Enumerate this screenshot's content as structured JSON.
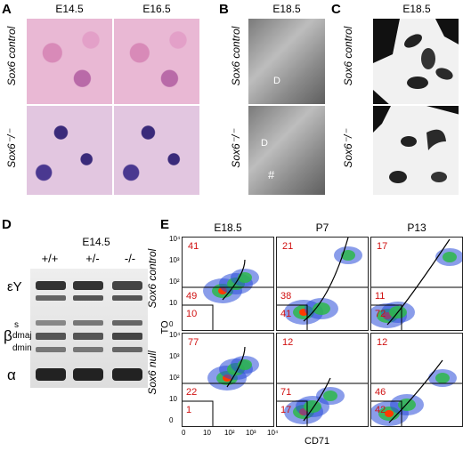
{
  "panel_labels": [
    "A",
    "B",
    "C",
    "D",
    "E"
  ],
  "panelA": {
    "headers": [
      "E14.5",
      "E16.5"
    ],
    "rows": [
      "Sox6 control",
      "Sox6⁻/⁻"
    ]
  },
  "panelB": {
    "header": "E18.5",
    "rows": [
      "Sox6 control",
      "Sox6⁻/⁻"
    ],
    "marks": [
      "D",
      "D",
      "#"
    ]
  },
  "panelC": {
    "header": "E18.5",
    "rows": [
      "Sox6 control",
      "Sox6⁻/⁻"
    ]
  },
  "panelD": {
    "header": "E14.5",
    "lanes": [
      "+/+",
      "+/-",
      "-/-"
    ],
    "bands": {
      "ey": "εY",
      "s": "s",
      "beta": "β",
      "dmaj": "dmaj",
      "dmin": "dmin",
      "alpha": "α"
    }
  },
  "panelE": {
    "columns": [
      "E18.5",
      "P7",
      "P13"
    ],
    "rows": [
      "Sox6 control",
      "Sox6 null"
    ],
    "ylabel": "TO",
    "xlabel": "CD71",
    "quadrants": [
      [
        {
          "top": "41",
          "mid": "49",
          "low": "10"
        },
        {
          "top": "21",
          "mid": "38",
          "low": "41"
        },
        {
          "top": "17",
          "mid": "11",
          "low": "72"
        }
      ],
      [
        {
          "top": "77",
          "mid": "22",
          "low": "1"
        },
        {
          "top": "12",
          "mid": "71",
          "low": "17"
        },
        {
          "top": "12",
          "mid": "46",
          "low": "42"
        }
      ]
    ],
    "y_ticks": [
      "10⁴",
      "10³",
      "10²",
      "10",
      "0"
    ],
    "x_ticks": [
      "0",
      "10",
      "10²",
      "10³",
      "10⁴"
    ],
    "colors": {
      "numbers": "#d01010",
      "density_high": "#ff3a00",
      "density_mid": "#2db84a",
      "density_low": "#2a4cd8"
    }
  }
}
